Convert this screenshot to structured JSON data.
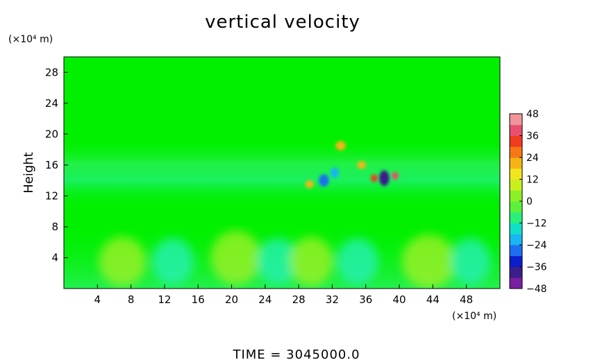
{
  "chart_data": {
    "type": "heatmap",
    "title": "vertical velocity",
    "ylabel": "Height",
    "y_unit": "(×10⁴ m)",
    "x_unit": "(×10⁴ m)",
    "xlim": [
      0,
      52
    ],
    "ylim": [
      0,
      30
    ],
    "x_ticks": [
      4,
      8,
      12,
      16,
      20,
      24,
      28,
      32,
      36,
      40,
      44,
      48
    ],
    "y_ticks": [
      4,
      8,
      12,
      16,
      20,
      24,
      28
    ],
    "colorbar": {
      "range": [
        -48,
        48
      ],
      "ticks": [
        48,
        36,
        24,
        12,
        0,
        -12,
        -24,
        -36,
        -48
      ],
      "colors": [
        "#7a1fa2",
        "#3b1e8c",
        "#0a1ecb",
        "#1e6ff0",
        "#18b6f2",
        "#10e0c8",
        "#28f07a",
        "#5cf03c",
        "#8cf028",
        "#c8f01e",
        "#f0e61e",
        "#f5b414",
        "#f57814",
        "#f03c1e",
        "#e8506e",
        "#f0969b"
      ]
    },
    "features": [
      {
        "type": "blob",
        "x": 7,
        "y": 3.5,
        "value": 6,
        "rx": 2.8,
        "ry": 3.2
      },
      {
        "type": "blob",
        "x": 13,
        "y": 3.5,
        "value": -6,
        "rx": 2.5,
        "ry": 3.0
      },
      {
        "type": "blob",
        "x": 20.5,
        "y": 4,
        "value": 7,
        "rx": 3.0,
        "ry": 3.5
      },
      {
        "type": "blob",
        "x": 25.5,
        "y": 3.5,
        "value": -6,
        "rx": 2.5,
        "ry": 3.0
      },
      {
        "type": "blob",
        "x": 29.5,
        "y": 3.5,
        "value": 6,
        "rx": 2.6,
        "ry": 3.2
      },
      {
        "type": "blob",
        "x": 35,
        "y": 3.5,
        "value": -5,
        "rx": 2.5,
        "ry": 3.0
      },
      {
        "type": "blob",
        "x": 43.5,
        "y": 3.5,
        "value": 7,
        "rx": 3.2,
        "ry": 3.5
      },
      {
        "type": "blob",
        "x": 48.5,
        "y": 3.5,
        "value": -5,
        "rx": 2.4,
        "ry": 3.0
      },
      {
        "type": "blob",
        "x": 31,
        "y": 14,
        "value": -28,
        "rx": 0.6,
        "ry": 0.8
      },
      {
        "type": "blob",
        "x": 32.3,
        "y": 15,
        "value": -22,
        "rx": 0.5,
        "ry": 0.7
      },
      {
        "type": "blob",
        "x": 38.2,
        "y": 14.3,
        "value": -42,
        "rx": 0.6,
        "ry": 1.0
      },
      {
        "type": "blob",
        "x": 39.5,
        "y": 14.6,
        "value": 36,
        "rx": 0.4,
        "ry": 0.5
      },
      {
        "type": "blob",
        "x": 37,
        "y": 14.3,
        "value": 30,
        "rx": 0.4,
        "ry": 0.5
      },
      {
        "type": "blob",
        "x": 33,
        "y": 18.5,
        "value": 22,
        "rx": 0.6,
        "ry": 0.6
      },
      {
        "type": "blob",
        "x": 29.3,
        "y": 13.5,
        "value": 20,
        "rx": 0.5,
        "ry": 0.5
      },
      {
        "type": "blob",
        "x": 35.5,
        "y": 16,
        "value": 18,
        "rx": 0.5,
        "ry": 0.5
      }
    ]
  },
  "footer": {
    "time_label": "TIME = 3045000.0"
  }
}
